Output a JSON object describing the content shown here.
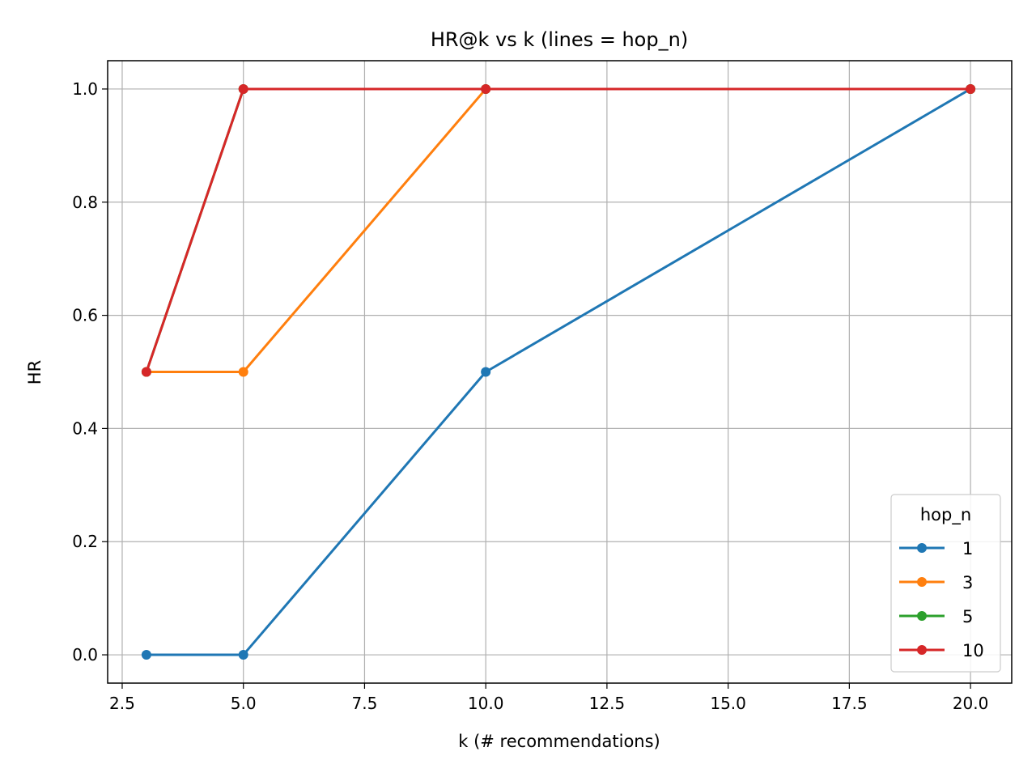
{
  "chart_data": {
    "type": "line",
    "title": "HR@k vs k  (lines = hop_n)",
    "xlabel": "k  (# recommendations)",
    "ylabel": "HR",
    "x": [
      3,
      5,
      10,
      20
    ],
    "xlim": [
      2.2,
      20.85
    ],
    "ylim": [
      -0.05,
      1.05
    ],
    "xticks": [
      2.5,
      5.0,
      7.5,
      10.0,
      12.5,
      15.0,
      17.5,
      20.0
    ],
    "xtick_labels": [
      "2.5",
      "5.0",
      "7.5",
      "10.0",
      "12.5",
      "15.0",
      "17.5",
      "20.0"
    ],
    "yticks": [
      0.0,
      0.2,
      0.4,
      0.6,
      0.8,
      1.0
    ],
    "ytick_labels": [
      "0.0",
      "0.2",
      "0.4",
      "0.6",
      "0.8",
      "1.0"
    ],
    "grid": true,
    "legend": {
      "title": "hop_n",
      "placement": "lower-right"
    },
    "series": [
      {
        "name": "1",
        "color": "#1f77b4",
        "values": [
          0.0,
          0.0,
          0.5,
          1.0
        ]
      },
      {
        "name": "3",
        "color": "#ff7f0e",
        "values": [
          0.5,
          0.5,
          1.0,
          1.0
        ]
      },
      {
        "name": "5",
        "color": "#2ca02c",
        "values": [
          0.5,
          1.0,
          1.0,
          1.0
        ]
      },
      {
        "name": "10",
        "color": "#d62728",
        "values": [
          0.5,
          1.0,
          1.0,
          1.0
        ]
      }
    ]
  }
}
